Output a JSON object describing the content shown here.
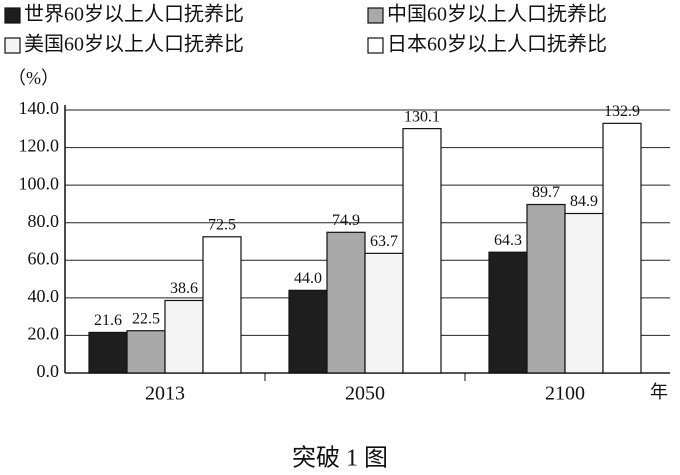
{
  "chart_data": {
    "type": "bar",
    "y_unit": "（%）",
    "x_unit": "年",
    "caption": "突破 1 图",
    "categories": [
      "2013",
      "2050",
      "2100"
    ],
    "series": [
      {
        "name": "世界60岁以上人口抚养比",
        "color": "#1e1e1e",
        "values": [
          21.6,
          44.0,
          64.3
        ],
        "value_labels": [
          "21.6",
          "44.0",
          "64.3"
        ]
      },
      {
        "name": "中国60岁以上人口抚养比",
        "color": "#a9a9a9",
        "values": [
          22.5,
          74.9,
          89.7
        ],
        "value_labels": [
          "22.5",
          "74.9",
          "89.7"
        ]
      },
      {
        "name": "美国60岁以上人口抚养比",
        "color": "#f4f4f4",
        "values": [
          38.6,
          63.7,
          84.9
        ],
        "value_labels": [
          "38.6",
          "63.7",
          "84.9"
        ]
      },
      {
        "name": "日本60岁以上人口抚养比",
        "color": "#ffffff",
        "values": [
          72.5,
          130.1,
          132.9
        ],
        "value_labels": [
          "72.5",
          "130.1",
          "132.9"
        ]
      }
    ],
    "ylim": [
      0,
      140
    ],
    "yticks": [
      {
        "value": 0,
        "label": "0.0"
      },
      {
        "value": 20,
        "label": "20.0"
      },
      {
        "value": 40,
        "label": "40.0"
      },
      {
        "value": 60,
        "label": "60.0"
      },
      {
        "value": 80,
        "label": "80.0"
      },
      {
        "value": 100,
        "label": "100.0"
      },
      {
        "value": 120,
        "label": "120.0"
      },
      {
        "value": 140,
        "label": "140.0"
      }
    ],
    "grid": true
  }
}
